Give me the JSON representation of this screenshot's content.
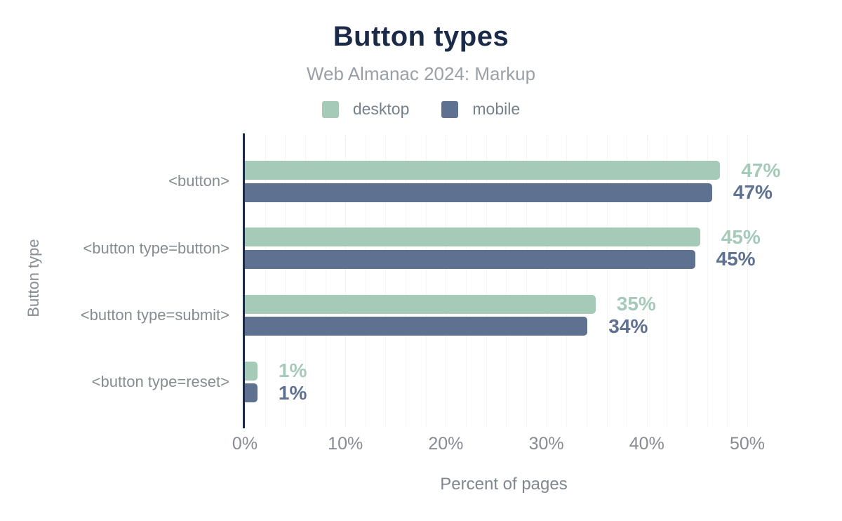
{
  "header": {
    "title": "Button types",
    "subtitle": "Web Almanac 2024: Markup"
  },
  "colors": {
    "desktop": "#a5cab8",
    "mobile": "#5e7190",
    "title_text": "#1b2a47",
    "axis_line": "#1b2a47",
    "muted_text": "#868c92",
    "subtitle_text": "#9aa0a5"
  },
  "chart_data": {
    "type": "bar",
    "orientation": "horizontal",
    "title": "Button types",
    "subtitle": "Web Almanac 2024: Markup",
    "categories": [
      "<button>",
      "<button type=button>",
      "<button type=submit>",
      "<button type=reset>"
    ],
    "series": [
      {
        "name": "desktop",
        "color": "#a5cab8",
        "values": [
          47,
          45,
          35,
          1
        ],
        "labels": [
          "47%",
          "45%",
          "35%",
          "1%"
        ],
        "values_precise": [
          47.3,
          45.3,
          34.9,
          1.25
        ]
      },
      {
        "name": "mobile",
        "color": "#5e7190",
        "values": [
          47,
          45,
          34,
          1
        ],
        "labels": [
          "47%",
          "45%",
          "34%",
          "1%"
        ],
        "values_precise": [
          46.5,
          44.8,
          34.1,
          1.25
        ]
      }
    ],
    "xlabel": "Percent of pages",
    "ylabel": "Button type",
    "x_ticks": [
      "0%",
      "10%",
      "20%",
      "30%",
      "40%",
      "50%"
    ],
    "x_tick_values": [
      0,
      10,
      20,
      30,
      40,
      50
    ],
    "xlim": [
      0,
      50
    ],
    "grid": {
      "minor_step": 2,
      "major_step": 10,
      "minor_style": "solid",
      "major_style": "dotted"
    },
    "legend_position": "top"
  }
}
